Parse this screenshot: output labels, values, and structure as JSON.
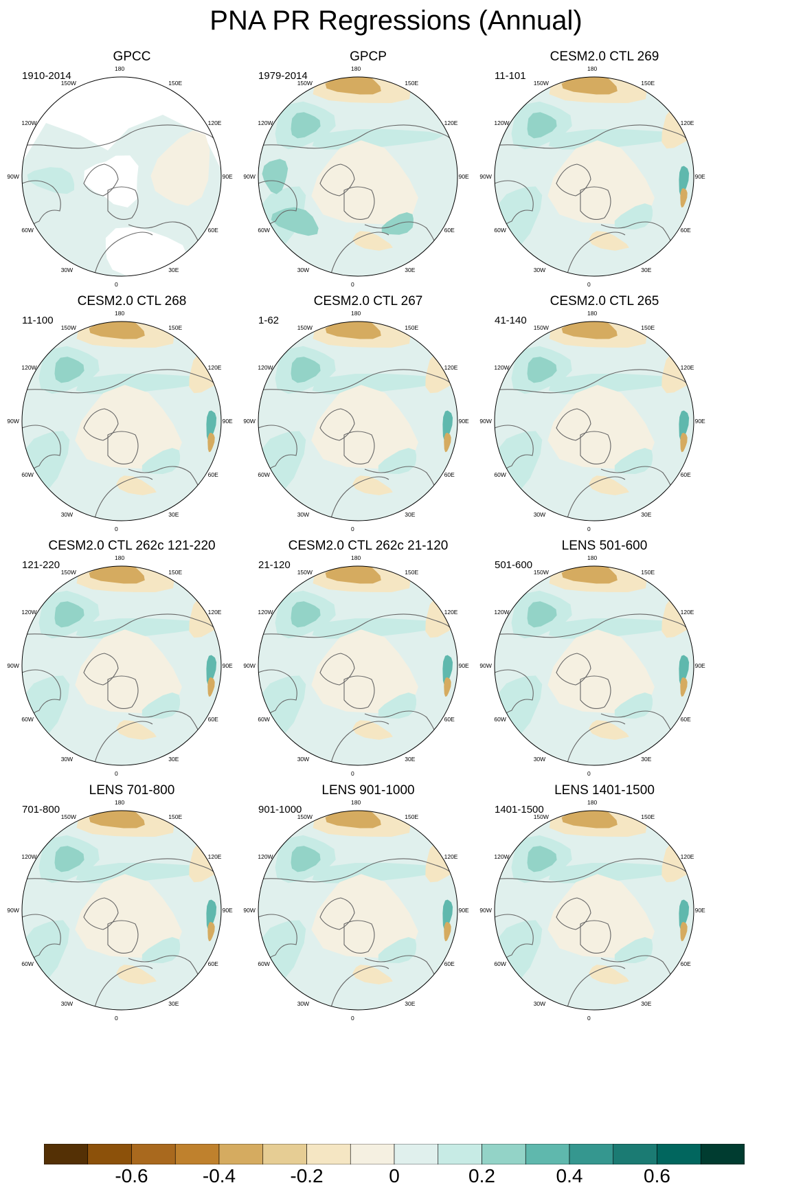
{
  "title": "PNA PR Regressions (Annual)",
  "lon_labels": [
    "180",
    "150E",
    "120E",
    "90E",
    "60E",
    "30E",
    "0",
    "30W",
    "60W",
    "90W",
    "120W",
    "150W"
  ],
  "panels": [
    {
      "title": "GPCC",
      "period": "1910-2014",
      "pattern": "gpcc"
    },
    {
      "title": "GPCP",
      "period": "1979-2014",
      "pattern": "obs"
    },
    {
      "title": "CESM2.0 CTL 269",
      "period": "11-101",
      "pattern": "model"
    },
    {
      "title": "CESM2.0 CTL 268",
      "period": "11-100",
      "pattern": "model"
    },
    {
      "title": "CESM2.0 CTL 267",
      "period": "1-62",
      "pattern": "model"
    },
    {
      "title": "CESM2.0 CTL 265",
      "period": "41-140",
      "pattern": "model"
    },
    {
      "title": "CESM2.0 CTL 262c 121-220",
      "period": "121-220",
      "pattern": "model"
    },
    {
      "title": "CESM2.0 CTL 262c 21-120",
      "period": "21-120",
      "pattern": "model"
    },
    {
      "title": "LENS 501-600",
      "period": "501-600",
      "pattern": "model"
    },
    {
      "title": "LENS 701-800",
      "period": "701-800",
      "pattern": "model"
    },
    {
      "title": "LENS 901-1000",
      "period": "901-1000",
      "pattern": "model"
    },
    {
      "title": "LENS 1401-1500",
      "period": "1401-1500",
      "pattern": "model"
    }
  ],
  "colorbar": {
    "colors": [
      "#543005",
      "#8c510a",
      "#a9691e",
      "#bf812d",
      "#d5ab60",
      "#e6cd94",
      "#f5e6c3",
      "#f5f0e1",
      "#e0f0ed",
      "#c7ebe5",
      "#93d3c7",
      "#5fb8ad",
      "#35978f",
      "#1b7b73",
      "#01665e",
      "#003c30"
    ],
    "tick_labels": [
      "-0.6",
      "-0.4",
      "-0.2",
      "0",
      "0.2",
      "0.4",
      "0.6"
    ],
    "tick_values": [
      -0.6,
      -0.4,
      -0.2,
      0,
      0.2,
      0.4,
      0.6
    ],
    "min": -0.8,
    "max": 0.8
  }
}
